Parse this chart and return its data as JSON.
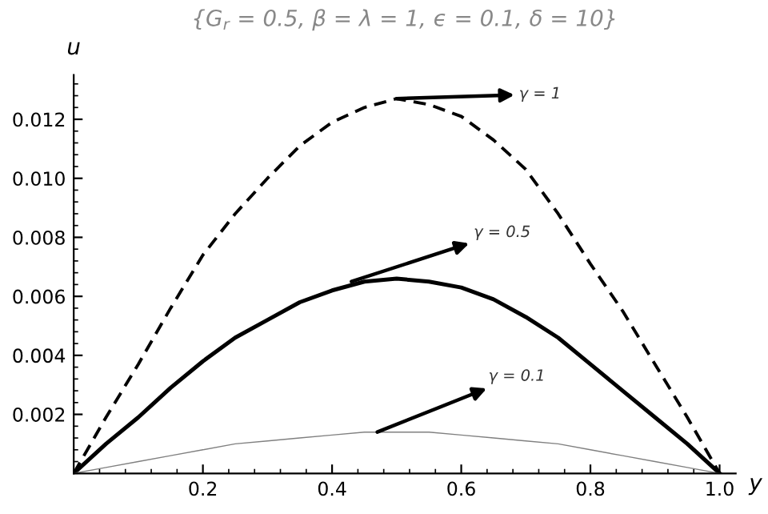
{
  "chart_data": {
    "type": "line",
    "title": "{G$_{r}$ = 0.5, β = λ = 1, ϵ = 0.1, δ = 10}",
    "xlabel": "y",
    "ylabel": "u",
    "x": [
      0,
      0.05,
      0.1,
      0.15,
      0.2,
      0.25,
      0.3,
      0.35,
      0.4,
      0.45,
      0.5,
      0.55,
      0.6,
      0.65,
      0.7,
      0.75,
      0.8,
      0.85,
      0.9,
      0.95,
      1.0
    ],
    "series": [
      {
        "color": "#000000",
        "line_style": "dashed",
        "values": [
          0,
          0.0019,
          0.0037,
          0.0056,
          0.0074,
          0.0088,
          0.01,
          0.0111,
          0.0119,
          0.0124,
          0.0127,
          0.0125,
          0.0121,
          0.0113,
          0.0103,
          0.0088,
          0.0071,
          0.0055,
          0.0037,
          0.0019,
          0
        ]
      },
      {
        "color": "#000000",
        "line_style": "solid",
        "values": [
          0,
          0.001,
          0.0019,
          0.0029,
          0.0038,
          0.0046,
          0.0052,
          0.0058,
          0.0062,
          0.0065,
          0.0066,
          0.0065,
          0.0063,
          0.0059,
          0.0053,
          0.0046,
          0.0037,
          0.0028,
          0.0019,
          0.001,
          0
        ]
      },
      {
        "color": "#808080",
        "line_style": "solid",
        "values": [
          0,
          0.0002,
          0.0004,
          0.0006,
          0.0008,
          0.001,
          0.0011,
          0.0012,
          0.0013,
          0.0014,
          0.0014,
          0.0014,
          0.0013,
          0.0012,
          0.0011,
          0.001,
          0.0008,
          0.0006,
          0.0004,
          0.0002,
          0
        ]
      }
    ],
    "annotations": [
      {
        "text": "γ = 1",
        "x": 0.5,
        "y": 0.0127
      },
      {
        "text": "γ = 0.5",
        "x": 0.43,
        "y": 0.0065
      },
      {
        "text": "γ = 0.1",
        "x": 0.47,
        "y": 0.0014
      }
    ],
    "xlim": [
      0,
      1.025
    ],
    "ylim": [
      0,
      0.0135
    ],
    "xticks": [
      0.2,
      0.4,
      0.6,
      0.8,
      {
        "value": 1.0,
        "label": "1.0"
      }
    ],
    "yticks": [
      0.002,
      0.004,
      0.006,
      0.008,
      {
        "value": 0.01,
        "label": "0.010"
      },
      0.012
    ],
    "grid": false,
    "legend": false,
    "marker": "none"
  }
}
